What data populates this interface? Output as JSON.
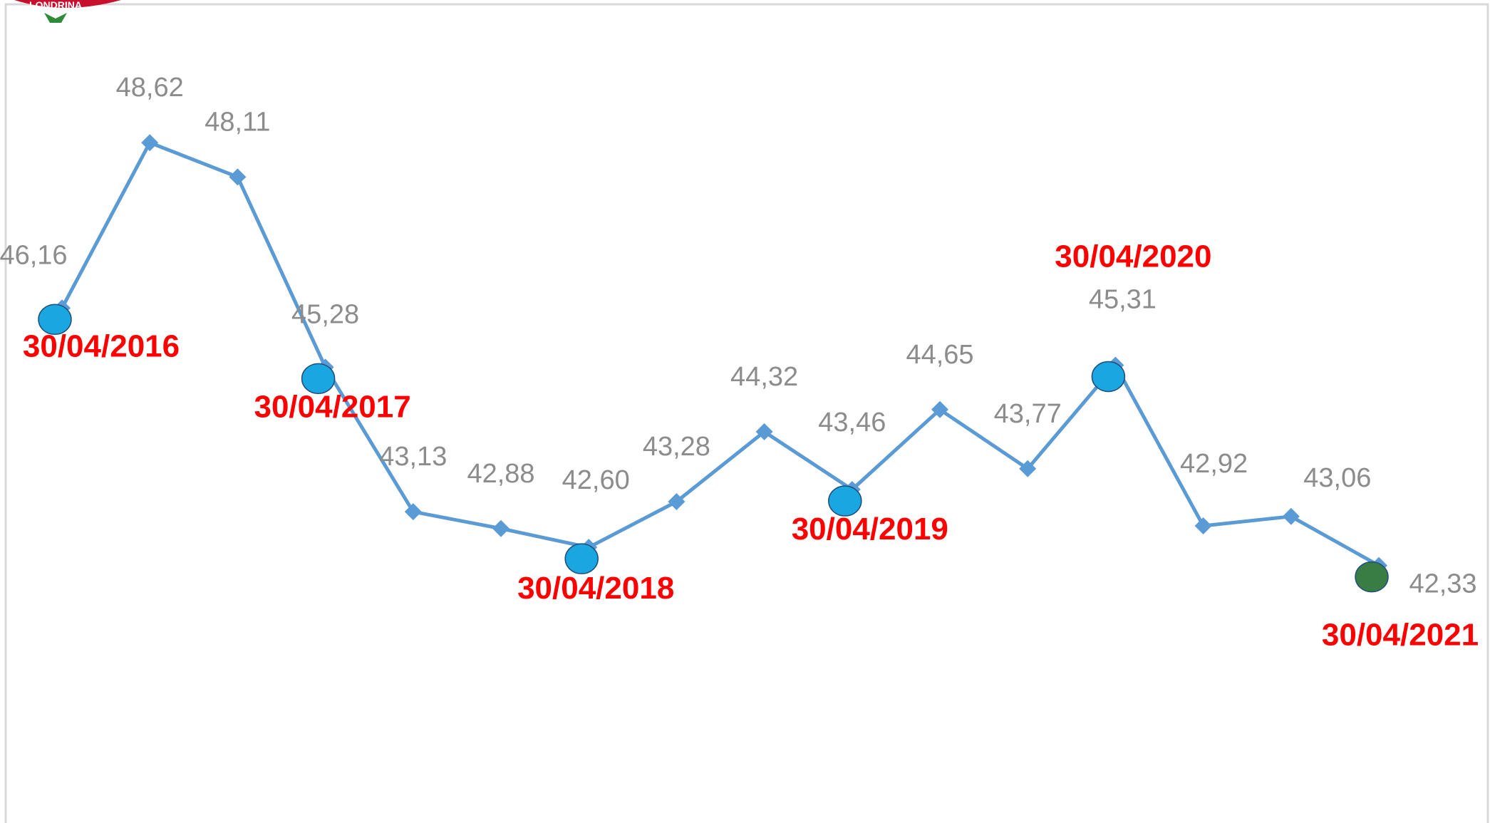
{
  "chart_data": {
    "type": "line",
    "categories": [
      "30/04/2016",
      null,
      null,
      "30/04/2017",
      null,
      null,
      "30/04/2018",
      null,
      null,
      "30/04/2019",
      null,
      null,
      "30/04/2020",
      null,
      null,
      "30/04/2021"
    ],
    "series": [
      {
        "color": "#5b9bd5",
        "values": [
          46.16,
          48.62,
          48.11,
          45.28,
          43.13,
          42.88,
          42.6,
          43.28,
          44.32,
          43.46,
          44.65,
          43.77,
          45.31,
          42.92,
          43.06,
          42.33
        ],
        "value_labels": [
          "46,16",
          "48,62",
          "48,11",
          "45,28",
          "43,13",
          "42,88",
          "42,60",
          "43,28",
          "44,32",
          "43,46",
          "44,65",
          "43,77",
          "45,31",
          "42,92",
          "43,06",
          "42,33"
        ]
      }
    ],
    "ylim": [
      38.5,
      50
    ],
    "highlight_color": "#1aa7e1",
    "final_color": "#3a7d44",
    "annotation_color": "#ff0000"
  }
}
